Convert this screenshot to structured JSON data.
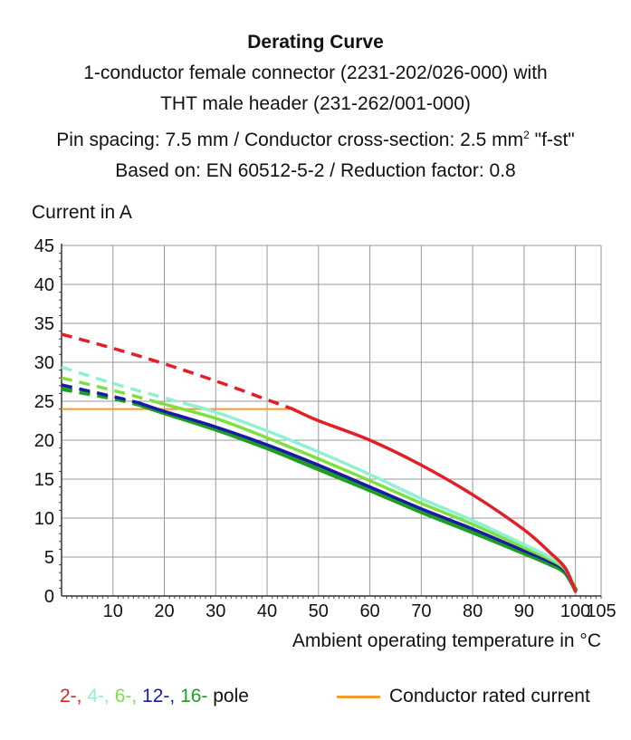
{
  "title": {
    "line1": "Derating Curve",
    "line2": "1-conductor female connector (2231-202/026-000) with",
    "line3": "THT male header (231-262/001-000)",
    "line4_before": "Pin spacing: 7.5 mm / Conductor cross-section: 2.5 mm",
    "line4_sup": "2",
    "line4_after": " \"f-st\"",
    "line5": "Based on: EN 60512-5-2 / Reduction factor: 0.8"
  },
  "legend": {
    "poles": [
      {
        "label": "2-,",
        "color": "#e31e24"
      },
      {
        "label": "4-,",
        "color": "#8ff0d2"
      },
      {
        "label": "6-,",
        "color": "#7ee040"
      },
      {
        "label": "12-,",
        "color": "#1a1aa8"
      },
      {
        "label": "16-",
        "color": "#1e9e1e"
      }
    ],
    "poles_suffix": "pole",
    "rated_label": "Conductor rated current",
    "rated_color": "#f39b2e"
  },
  "chart_data": {
    "type": "line",
    "ylabel": "Current in A",
    "xlabel": "Ambient operating temperature in °C",
    "xlim": [
      0,
      105
    ],
    "ylim": [
      0,
      45
    ],
    "x_ticks": [
      10,
      20,
      30,
      40,
      50,
      60,
      70,
      80,
      90,
      100,
      105
    ],
    "y_ticks": [
      0,
      5,
      10,
      15,
      20,
      25,
      30,
      35,
      40,
      45
    ],
    "grid": true,
    "rated_current": {
      "value": 24,
      "x_range": [
        0,
        45
      ],
      "color": "#f39b2e"
    },
    "series": [
      {
        "name": "16-pole",
        "color": "#1e9e1e",
        "width": 5,
        "dashed": [
          [
            0,
            26.6
          ],
          [
            10,
            25.4
          ],
          [
            15,
            24.6
          ]
        ],
        "solid": [
          [
            15,
            24.6
          ],
          [
            20,
            23.5
          ],
          [
            30,
            21.4
          ],
          [
            40,
            19.0
          ],
          [
            50,
            16.3
          ],
          [
            60,
            13.6
          ],
          [
            70,
            10.8
          ],
          [
            80,
            8.2
          ],
          [
            90,
            5.5
          ],
          [
            95,
            4.1
          ],
          [
            98,
            3.0
          ],
          [
            100,
            0.8
          ]
        ]
      },
      {
        "name": "12-pole",
        "color": "#1a1aa8",
        "width": 3.5,
        "dashed": [
          [
            0,
            27.1
          ],
          [
            10,
            25.6
          ],
          [
            15,
            24.8
          ]
        ],
        "solid": [
          [
            15,
            24.8
          ],
          [
            20,
            23.7
          ],
          [
            30,
            21.7
          ],
          [
            40,
            19.4
          ],
          [
            50,
            16.8
          ],
          [
            60,
            14.0
          ],
          [
            70,
            11.2
          ],
          [
            80,
            8.6
          ],
          [
            90,
            5.8
          ],
          [
            95,
            4.4
          ],
          [
            98,
            3.2
          ],
          [
            100,
            0.6
          ]
        ]
      },
      {
        "name": "6-pole",
        "color": "#7ee040",
        "width": 3.5,
        "dashed": [
          [
            0,
            28.0
          ],
          [
            10,
            26.4
          ],
          [
            19,
            24.8
          ]
        ],
        "solid": [
          [
            19,
            24.8
          ],
          [
            30,
            22.8
          ],
          [
            40,
            20.3
          ],
          [
            50,
            17.6
          ],
          [
            60,
            14.8
          ],
          [
            70,
            11.9
          ],
          [
            80,
            9.2
          ],
          [
            90,
            6.2
          ],
          [
            95,
            4.7
          ],
          [
            98,
            3.4
          ],
          [
            100,
            0.6
          ]
        ]
      },
      {
        "name": "4-pole",
        "color": "#8ff0d2",
        "width": 3.5,
        "dashed": [
          [
            0,
            29.4
          ],
          [
            10,
            27.3
          ],
          [
            24,
            24.7
          ]
        ],
        "solid": [
          [
            24,
            24.7
          ],
          [
            30,
            23.6
          ],
          [
            40,
            21.2
          ],
          [
            50,
            18.5
          ],
          [
            60,
            15.6
          ],
          [
            70,
            12.5
          ],
          [
            80,
            9.7
          ],
          [
            90,
            6.6
          ],
          [
            95,
            5.0
          ],
          [
            98,
            3.6
          ],
          [
            100,
            0.6
          ]
        ]
      },
      {
        "name": "2-pole",
        "color": "#e31e24",
        "width": 3.5,
        "dashed": [
          [
            0,
            33.6
          ],
          [
            10,
            31.8
          ],
          [
            20,
            29.8
          ],
          [
            30,
            27.6
          ],
          [
            40,
            25.2
          ],
          [
            45,
            24.0
          ]
        ],
        "solid": [
          [
            45,
            24.0
          ],
          [
            50,
            22.5
          ],
          [
            60,
            20.0
          ],
          [
            70,
            16.8
          ],
          [
            80,
            13.0
          ],
          [
            90,
            8.5
          ],
          [
            95,
            5.6
          ],
          [
            98,
            3.6
          ],
          [
            100,
            0.6
          ]
        ]
      }
    ]
  }
}
